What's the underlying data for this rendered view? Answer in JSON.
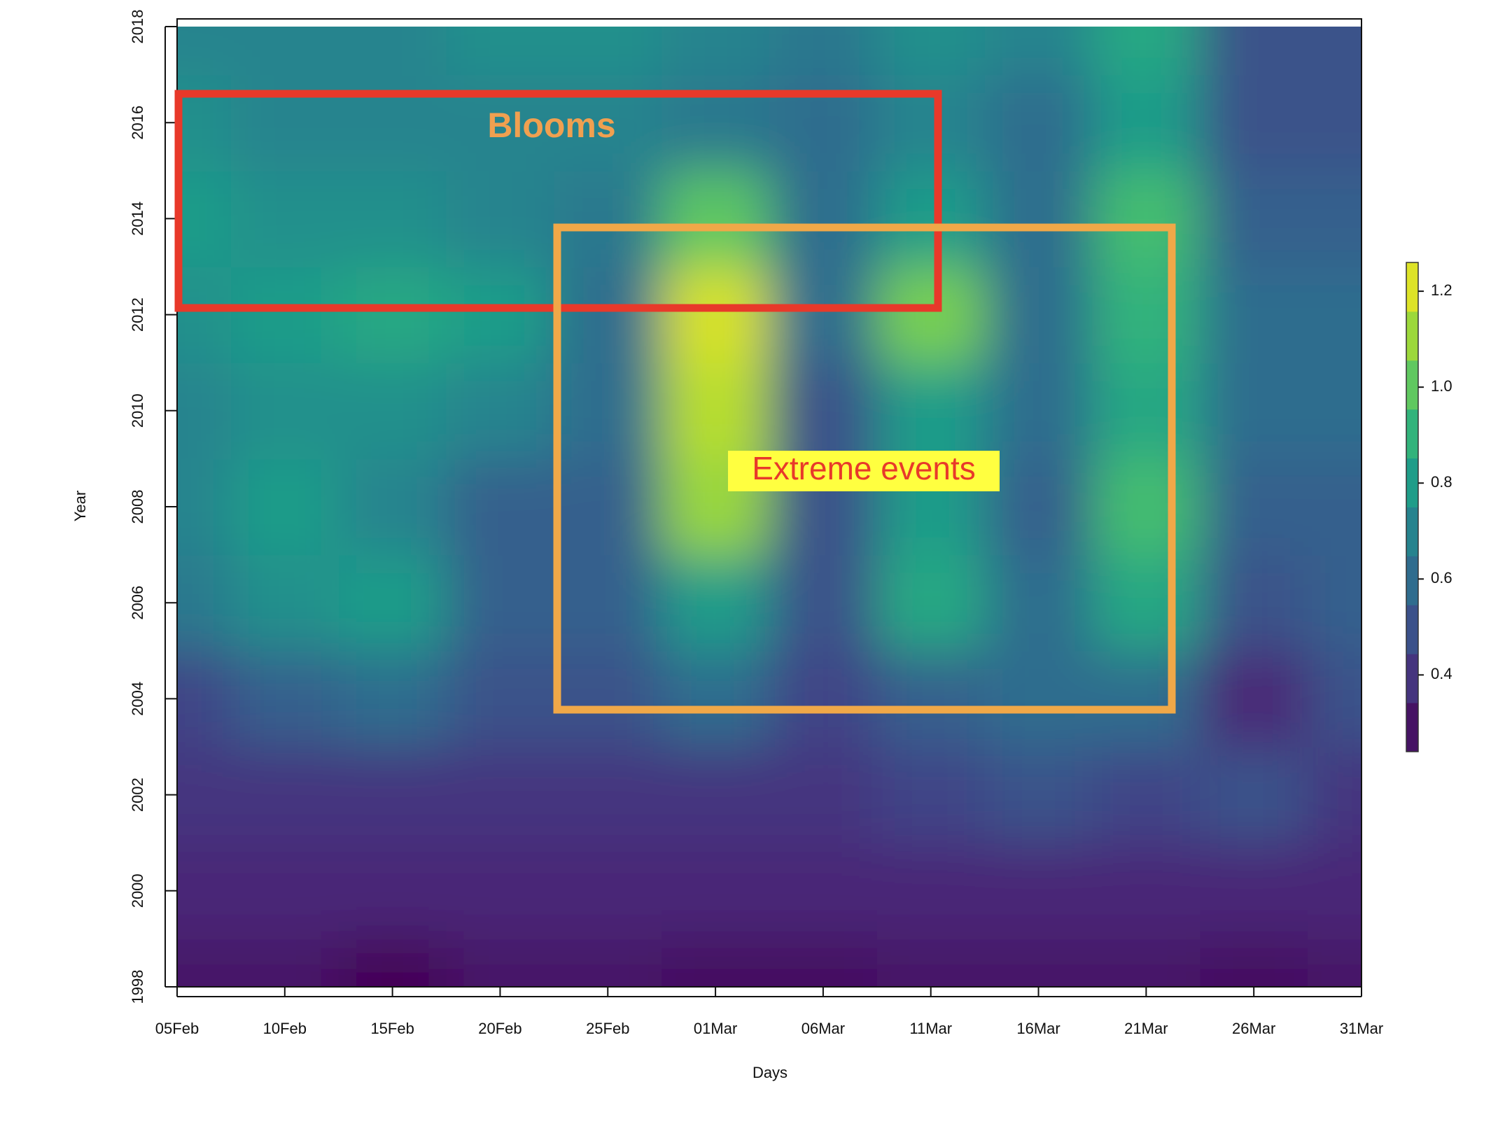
{
  "chart_data": {
    "type": "heatmap",
    "xlabel": "Days",
    "ylabel": "Year",
    "x": [
      "05Feb",
      "10Feb",
      "15Feb",
      "20Feb",
      "25Feb",
      "01Mar",
      "06Mar",
      "11Mar",
      "16Mar",
      "21Mar",
      "26Mar",
      "31Mar"
    ],
    "y": [
      1998,
      2000,
      2002,
      2004,
      2006,
      2008,
      2010,
      2012,
      2014,
      2016,
      2018
    ],
    "ylim": [
      1998,
      2018
    ],
    "yticks": [
      1998,
      2000,
      2002,
      2004,
      2006,
      2008,
      2010,
      2012,
      2014,
      2016,
      2018
    ],
    "z": [
      [
        0.3,
        0.3,
        0.25,
        0.3,
        0.3,
        0.28,
        0.28,
        0.3,
        0.3,
        0.3,
        0.28,
        0.3
      ],
      [
        0.35,
        0.35,
        0.35,
        0.35,
        0.35,
        0.35,
        0.35,
        0.35,
        0.35,
        0.35,
        0.35,
        0.35
      ],
      [
        0.4,
        0.4,
        0.4,
        0.4,
        0.4,
        0.4,
        0.4,
        0.45,
        0.5,
        0.45,
        0.5,
        0.4
      ],
      [
        0.45,
        0.55,
        0.6,
        0.5,
        0.5,
        0.6,
        0.45,
        0.55,
        0.6,
        0.6,
        0.35,
        0.5
      ],
      [
        0.65,
        0.75,
        0.8,
        0.55,
        0.55,
        0.8,
        0.5,
        0.85,
        0.6,
        0.85,
        0.5,
        0.55
      ],
      [
        0.7,
        0.8,
        0.7,
        0.55,
        0.55,
        1.1,
        0.5,
        0.8,
        0.55,
        0.95,
        0.55,
        0.55
      ],
      [
        0.7,
        0.75,
        0.75,
        0.7,
        0.6,
        1.15,
        0.5,
        0.8,
        0.6,
        0.85,
        0.6,
        0.6
      ],
      [
        0.75,
        0.8,
        0.85,
        0.8,
        0.6,
        1.2,
        0.6,
        1.05,
        0.6,
        0.9,
        0.6,
        0.6
      ],
      [
        0.8,
        0.75,
        0.75,
        0.7,
        0.65,
        1.0,
        0.6,
        0.8,
        0.6,
        0.95,
        0.55,
        0.55
      ],
      [
        0.75,
        0.7,
        0.7,
        0.7,
        0.7,
        0.65,
        0.6,
        0.7,
        0.6,
        0.8,
        0.5,
        0.5
      ],
      [
        0.7,
        0.7,
        0.7,
        0.75,
        0.75,
        0.7,
        0.65,
        0.75,
        0.7,
        0.85,
        0.5,
        0.5
      ]
    ],
    "clim": [
      0.24,
      1.26
    ],
    "colorbar_ticks": [
      0.4,
      0.6,
      0.8,
      {
        "value": 1,
        "label": "1.0"
      },
      1.2
    ],
    "colormap": [
      "#440154",
      "#482878",
      "#3e4989",
      "#31688e",
      "#26828e",
      "#1f9e89",
      "#35b779",
      "#6ece58",
      "#b5de2b",
      "#fde725"
    ],
    "annotations": [
      {
        "text": "Blooms",
        "color": "#e8392a",
        "text_color": "#f0a050"
      },
      {
        "text": "Extreme events",
        "color": "#f0a848",
        "text_color": "#e8392a",
        "background": "#ffff40"
      }
    ]
  }
}
